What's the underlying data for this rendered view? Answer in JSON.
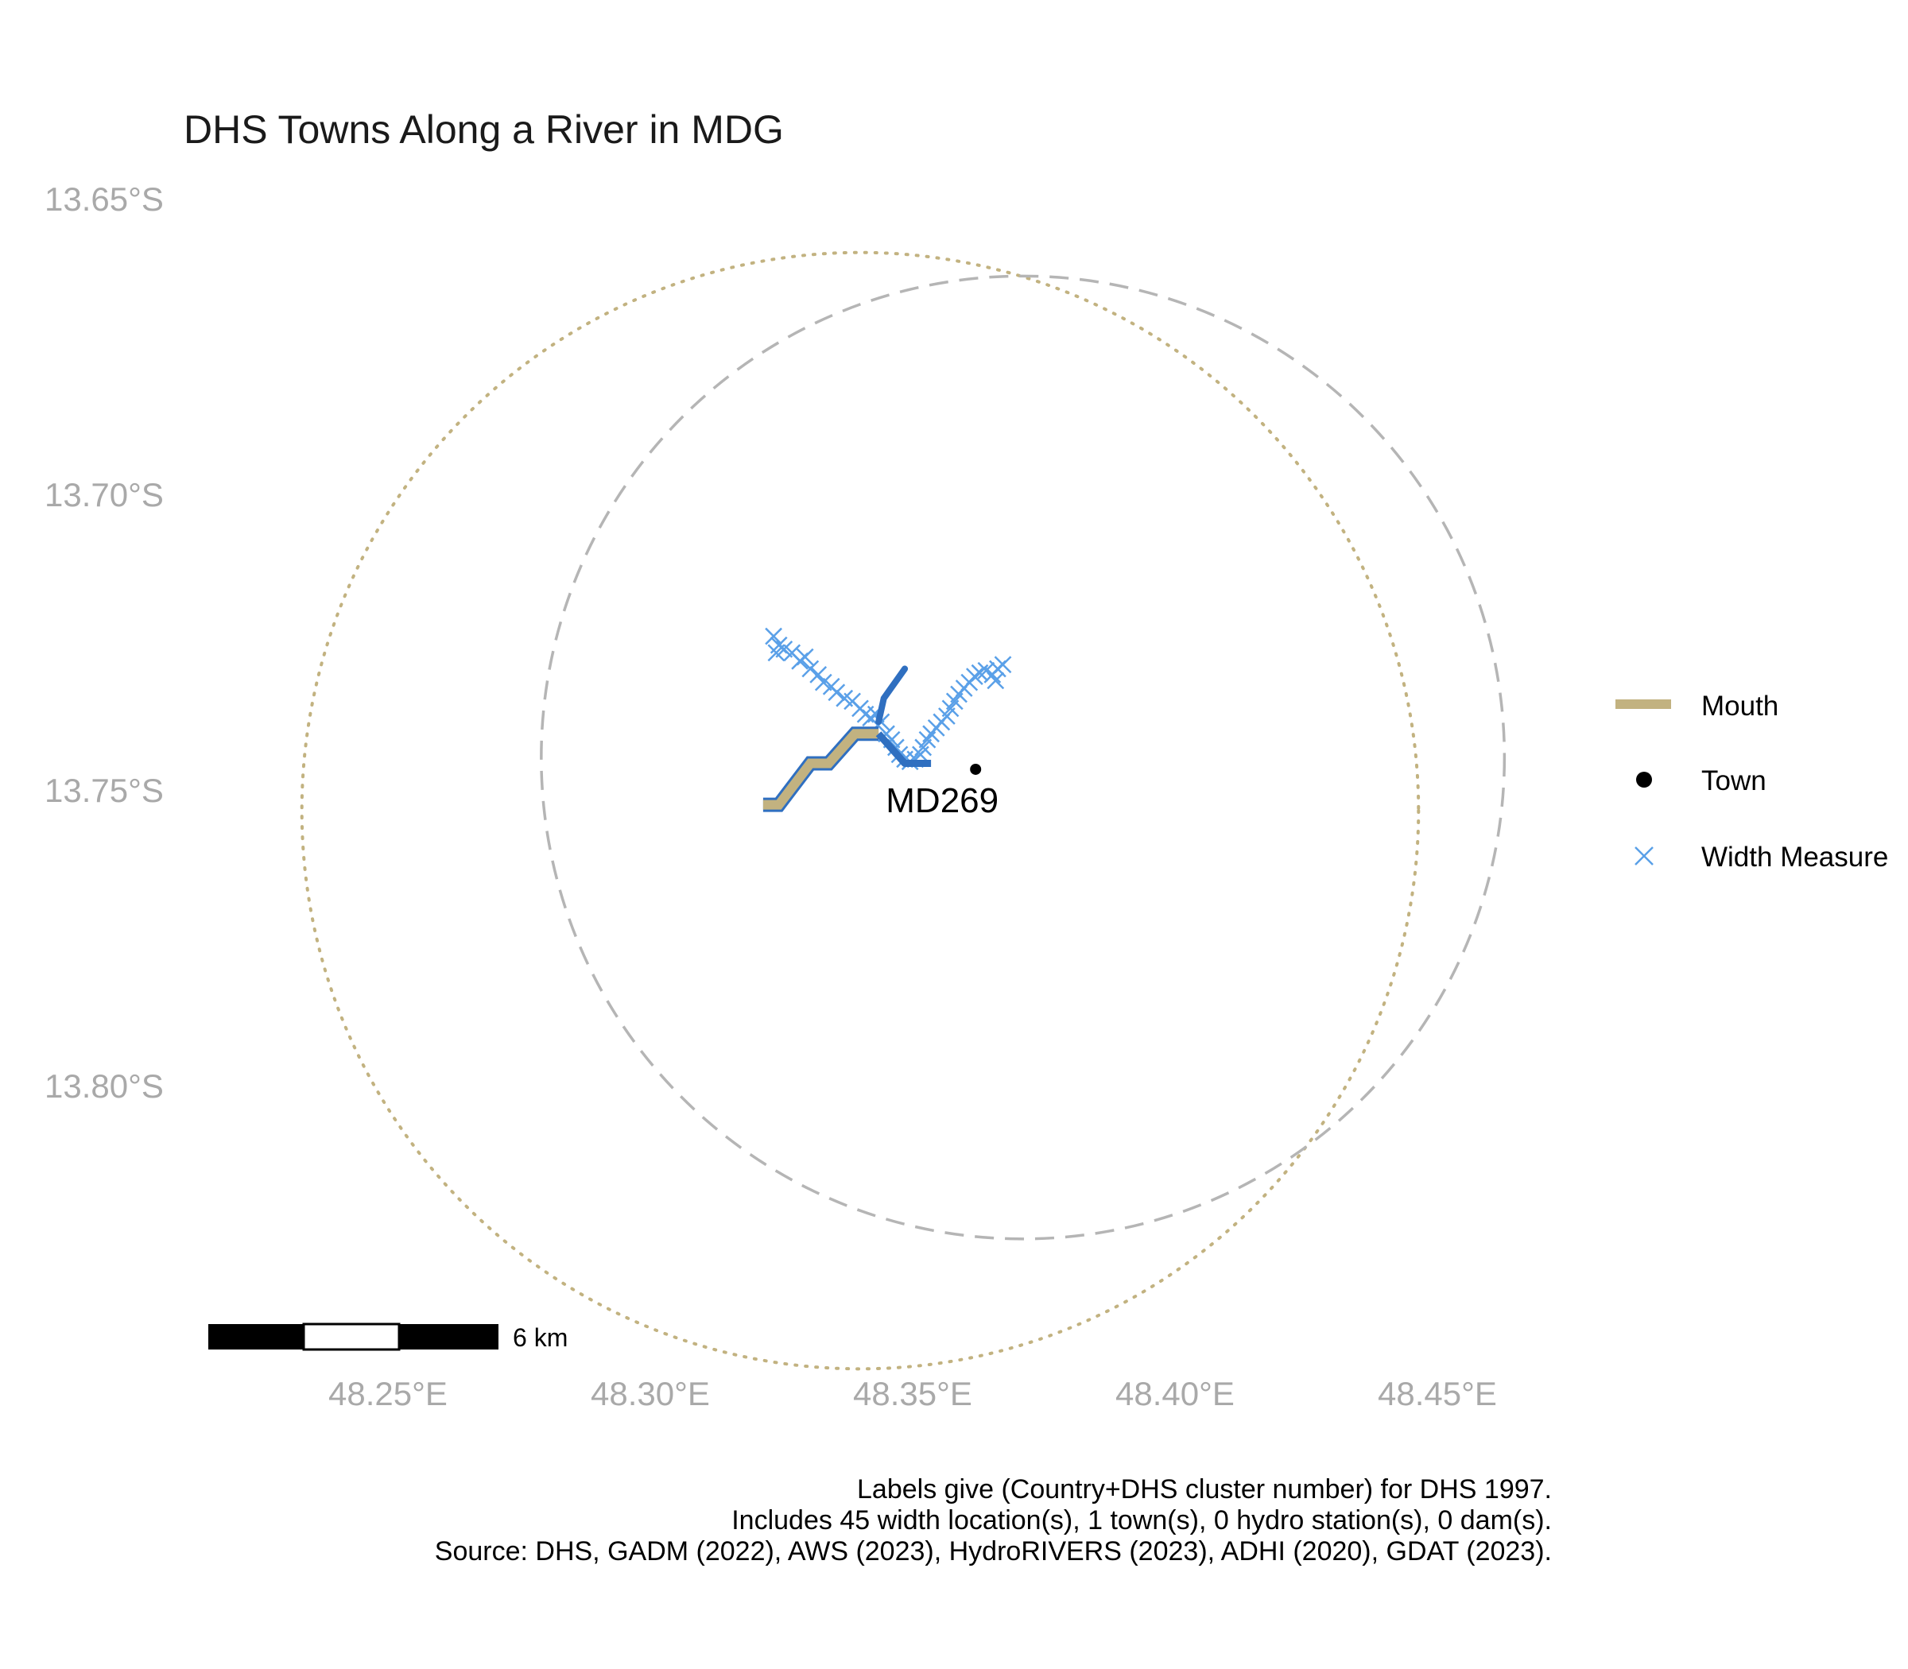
{
  "title": "DHS Towns Along a River in MDG",
  "y_ticks": [
    {
      "label": "13.65°S",
      "lat": -13.65
    },
    {
      "label": "13.70°S",
      "lat": -13.7
    },
    {
      "label": "13.75°S",
      "lat": -13.75
    },
    {
      "label": "13.80°S",
      "lat": -13.8
    }
  ],
  "x_ticks": [
    {
      "label": "48.25°E",
      "lon": 48.25
    },
    {
      "label": "48.30°E",
      "lon": 48.3
    },
    {
      "label": "48.35°E",
      "lon": 48.35
    },
    {
      "label": "48.40°E",
      "lon": 48.4
    },
    {
      "label": "48.45°E",
      "lon": 48.45
    }
  ],
  "legend": [
    {
      "key": "mouth",
      "label": "Mouth",
      "color": "#c2b280"
    },
    {
      "key": "town",
      "label": "Town",
      "color": "#000000"
    },
    {
      "key": "width",
      "label": "Width Measure",
      "color": "#5aa0e8"
    }
  ],
  "colors": {
    "river": "#2f6fc0",
    "mouth": "#c2b280",
    "width_marker": "#5aa0e8",
    "buffer_circle": "#b5b5b5",
    "mouth_circle": "#c2b280",
    "tick_text": "#a9a9a9"
  },
  "scale_bar": {
    "label": "6 km"
  },
  "town": {
    "label": "MD269",
    "lon": 48.362,
    "lat": -13.7465
  },
  "circles": {
    "buffer": {
      "lon": 48.371,
      "lat": -13.7445,
      "radius_deg": 0.0885
    },
    "mouth": {
      "lon": 48.34,
      "lat": -13.7535,
      "radius_deg": 0.1015
    }
  },
  "mouth_line": [
    [
      48.3215,
      -13.7525
    ],
    [
      48.3245,
      -13.7525
    ],
    [
      48.3305,
      -13.7455
    ],
    [
      48.334,
      -13.7455
    ],
    [
      48.339,
      -13.7405
    ],
    [
      48.3435,
      -13.7405
    ]
  ],
  "river_main": [
    [
      48.3435,
      -13.7405
    ],
    [
      48.3465,
      -13.7435
    ],
    [
      48.3485,
      -13.7455
    ],
    [
      48.3535,
      -13.7455
    ]
  ],
  "river_branch": [
    [
      48.3435,
      -13.7385
    ],
    [
      48.3445,
      -13.7345
    ],
    [
      48.3485,
      -13.7295
    ]
  ],
  "width_points": [
    [
      48.3235,
      -13.724
    ],
    [
      48.3245,
      -13.7255
    ],
    [
      48.324,
      -13.7268
    ],
    [
      48.3255,
      -13.7262
    ],
    [
      48.327,
      -13.7268
    ],
    [
      48.3285,
      -13.7282
    ],
    [
      48.3295,
      -13.7275
    ],
    [
      48.3305,
      -13.7295
    ],
    [
      48.332,
      -13.7305
    ],
    [
      48.333,
      -13.7318
    ],
    [
      48.3345,
      -13.7325
    ],
    [
      48.3355,
      -13.7335
    ],
    [
      48.337,
      -13.7345
    ],
    [
      48.3385,
      -13.735
    ],
    [
      48.34,
      -13.7362
    ],
    [
      48.341,
      -13.7372
    ],
    [
      48.342,
      -13.7378
    ],
    [
      48.343,
      -13.7372
    ],
    [
      48.344,
      -13.7385
    ],
    [
      48.345,
      -13.7405
    ],
    [
      48.346,
      -13.7415
    ],
    [
      48.3468,
      -13.7428
    ],
    [
      48.3475,
      -13.744
    ],
    [
      48.3485,
      -13.7448
    ],
    [
      48.3495,
      -13.7452
    ],
    [
      48.3505,
      -13.7448
    ],
    [
      48.3515,
      -13.744
    ],
    [
      48.352,
      -13.7428
    ],
    [
      48.3528,
      -13.7415
    ],
    [
      48.3535,
      -13.7405
    ],
    [
      48.3545,
      -13.7395
    ],
    [
      48.3555,
      -13.7385
    ],
    [
      48.3565,
      -13.7375
    ],
    [
      48.3572,
      -13.7362
    ],
    [
      48.358,
      -13.735
    ],
    [
      48.3588,
      -13.7338
    ],
    [
      48.3598,
      -13.7328
    ],
    [
      48.3608,
      -13.7318
    ],
    [
      48.3618,
      -13.7308
    ],
    [
      48.3628,
      -13.7302
    ],
    [
      48.364,
      -13.7298
    ],
    [
      48.3652,
      -13.7305
    ],
    [
      48.3662,
      -13.7295
    ],
    [
      48.3672,
      -13.7288
    ],
    [
      48.3658,
      -13.7315
    ]
  ],
  "captions": [
    "Labels give (Country+DHS cluster number) for DHS 1997.",
    "Includes 45 width location(s), 1 town(s), 0 hydro station(s), 0 dam(s).",
    "Source: DHS, GADM (2022), AWS (2023), HydroRIVERS (2023), ADHI (2020), GDAT (2023)."
  ]
}
